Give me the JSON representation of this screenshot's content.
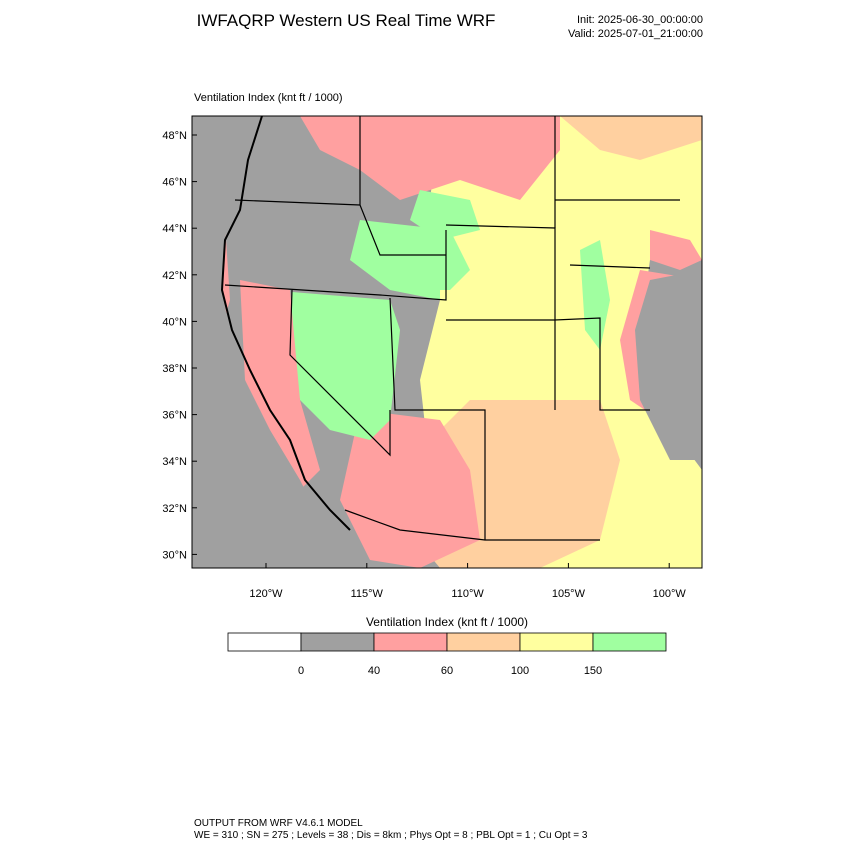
{
  "header": {
    "title": "IWFAQRP Western US Real Time WRF",
    "init": "Init: 2025-06-30_00:00:00",
    "valid": "Valid: 2025-07-01_21:00:00"
  },
  "map": {
    "title": "Ventilation Index   (knt ft / 1000)",
    "lat_labels": [
      "48°N",
      "46°N",
      "44°N",
      "42°N",
      "40°N",
      "38°N",
      "36°N",
      "34°N",
      "32°N",
      "30°N"
    ],
    "lon_labels": [
      "120°W",
      "115°W",
      "110°W",
      "105°W",
      "100°W"
    ]
  },
  "colorbar": {
    "title": "Ventilation Index   (knt ft / 1000)",
    "colors": [
      "#ffffff",
      "#a0a0a0",
      "#ffa0a0",
      "#ffd0a0",
      "#ffff9f",
      "#a0ffa0"
    ],
    "labels": [
      0,
      40,
      60,
      100,
      150
    ]
  },
  "footer": {
    "line1": "OUTPUT FROM WRF V4.6.1 MODEL",
    "line2": "WE = 310 ; SN = 275 ; Levels = 38 ; Dis = 8km ; Phys Opt = 8 ; PBL Opt = 1 ; Cu Opt = 3"
  }
}
